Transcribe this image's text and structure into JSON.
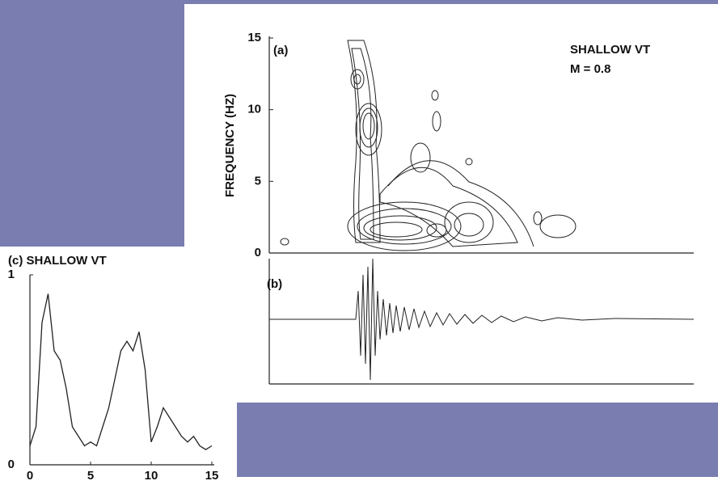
{
  "chart_data": [
    {
      "type": "contour",
      "title": "(a)",
      "annotations": [
        "SHALLOW VT",
        "M = 0.8"
      ],
      "y_label": "FREQUENCY (HZ)",
      "ylim": [
        0,
        15
      ],
      "yticks": [
        0,
        5,
        10,
        15
      ]
    },
    {
      "type": "waveform",
      "title": "(b)"
    },
    {
      "type": "line",
      "title": "(c) SHALLOW VT",
      "color": "#222",
      "x": [
        0,
        0.5,
        1,
        1.5,
        2,
        2.5,
        3,
        3.5,
        4,
        4.5,
        5,
        5.5,
        6,
        6.5,
        7,
        7.5,
        8,
        8.5,
        9,
        9.5,
        10,
        10.5,
        11,
        11.5,
        12,
        12.5,
        13,
        13.5,
        14,
        14.5,
        15
      ],
      "values": [
        0.1,
        0.2,
        0.75,
        0.9,
        0.6,
        0.55,
        0.4,
        0.2,
        0.15,
        0.1,
        0.12,
        0.1,
        0.2,
        0.3,
        0.45,
        0.6,
        0.65,
        0.6,
        0.7,
        0.5,
        0.12,
        0.2,
        0.3,
        0.25,
        0.2,
        0.15,
        0.12,
        0.15,
        0.1,
        0.08,
        0.1
      ],
      "xlim": [
        0,
        15
      ],
      "xticks": [
        0,
        5,
        10,
        15
      ],
      "ylim": [
        0,
        1
      ],
      "yticks": [
        0,
        1
      ]
    }
  ]
}
